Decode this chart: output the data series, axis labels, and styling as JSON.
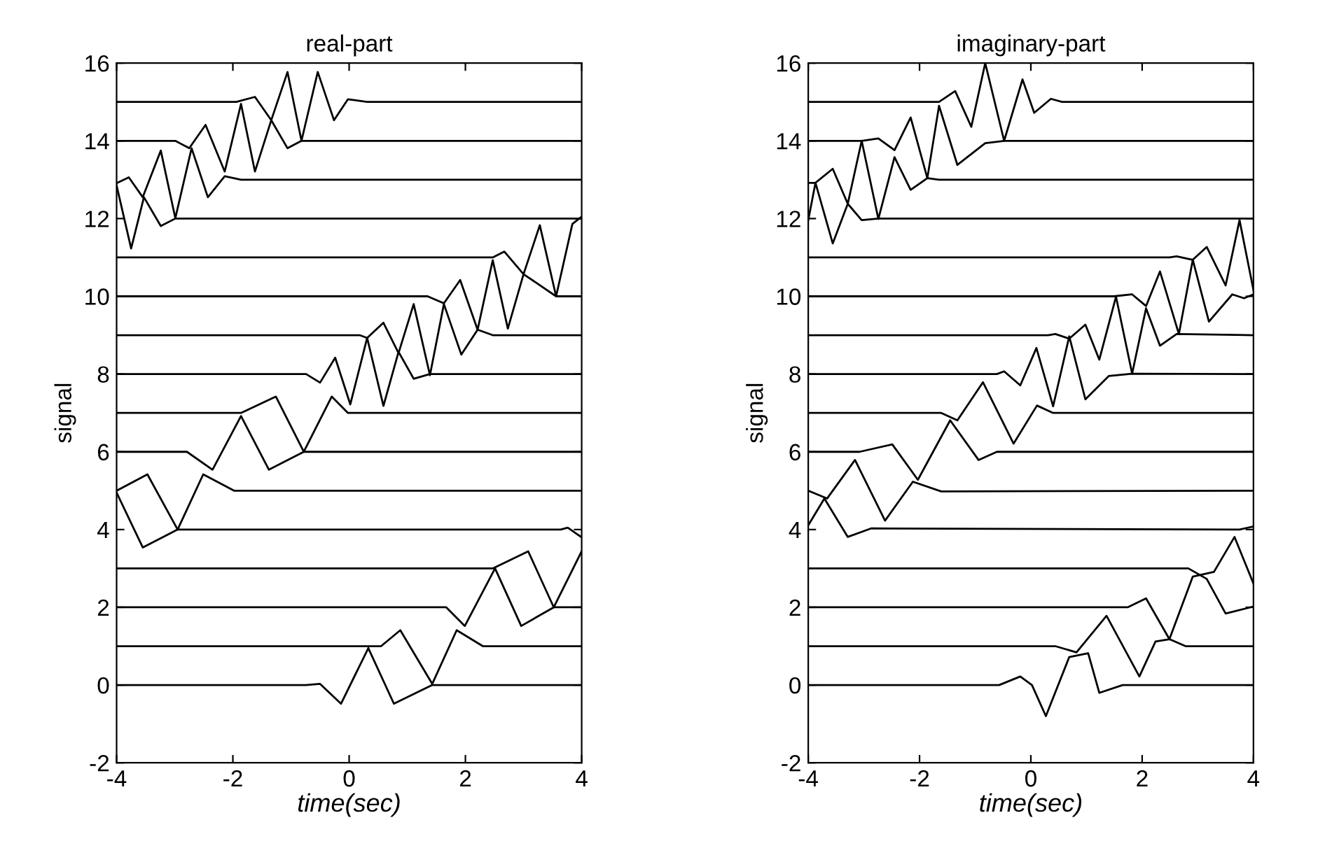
{
  "chart_data": [
    {
      "type": "line",
      "title": "real-part",
      "xlabel": "time(sec)",
      "ylabel": "signal",
      "xlim": [
        -4,
        4
      ],
      "ylim": [
        -2,
        16
      ],
      "xticks": [
        -4,
        -2,
        0,
        2,
        4
      ],
      "yticks": [
        -2,
        0,
        2,
        4,
        6,
        8,
        10,
        12,
        14,
        16
      ],
      "series": [
        {
          "color": "#000000",
          "x": [
            -4,
            -0.74,
            -0.5,
            -0.14,
            0.33,
            0.77,
            1.43,
            4
          ],
          "values": [
            0,
            0,
            0.03,
            -0.48,
            0.95,
            -0.48,
            0,
            0
          ]
        },
        {
          "color": "#000000",
          "x": [
            -4,
            0.31,
            0.55,
            0.88,
            1.43,
            1.85,
            2.3,
            4
          ],
          "values": [
            1,
            1,
            1,
            1.41,
            0.03,
            1.41,
            1,
            1
          ]
        },
        {
          "color": "#000000",
          "x": [
            -4,
            1.67,
            1.99,
            2.51,
            2.96,
            3.52,
            4
          ],
          "values": [
            2,
            2,
            1.52,
            3,
            1.52,
            2,
            2
          ]
        },
        {
          "color": "#000000",
          "x": [
            -4,
            2.47,
            3.08,
            3.52,
            4
          ],
          "values": [
            3,
            3,
            3.44,
            2,
            3.44
          ]
        },
        {
          "color": "#000000",
          "x": [
            -4,
            -3.55,
            -2.95,
            3.64,
            3.76,
            4
          ],
          "values": [
            4.95,
            3.54,
            4,
            4,
            4.05,
            3.8
          ]
        },
        {
          "color": "#000000",
          "x": [
            -4,
            -3.47,
            -2.95,
            -2.51,
            -1.98,
            4
          ],
          "values": [
            5,
            5.42,
            4,
            5.42,
            5,
            5
          ]
        },
        {
          "color": "#000000",
          "x": [
            -4,
            -2.79,
            -2.35,
            -1.86,
            -1.38,
            -0.78,
            4
          ],
          "values": [
            6,
            6,
            5.54,
            6.92,
            5.54,
            6,
            6
          ]
        },
        {
          "color": "#000000",
          "x": [
            -4,
            -1.86,
            -1.26,
            -0.78,
            -0.3,
            -0.02,
            4
          ],
          "values": [
            7,
            7,
            7.42,
            6,
            7.42,
            7,
            7
          ]
        },
        {
          "color": "#000000",
          "x": [
            -4,
            -0.74,
            -0.5,
            -0.24,
            0.02,
            0.31,
            0.59,
            0.85,
            1.11,
            1.39,
            4
          ],
          "values": [
            8,
            8,
            7.78,
            8.42,
            7.22,
            8.93,
            7.18,
            8.57,
            7.88,
            8,
            8
          ]
        },
        {
          "color": "#000000",
          "x": [
            -4,
            0.18,
            0.31,
            0.59,
            0.85,
            1.11,
            1.39,
            1.63,
            1.93,
            2.21,
            2.47,
            4
          ],
          "values": [
            9,
            9,
            8.93,
            9.32,
            8.54,
            9.8,
            7.97,
            9.8,
            8.5,
            9.14,
            9,
            9
          ]
        },
        {
          "color": "#000000",
          "x": [
            -4,
            1.35,
            1.63,
            1.91,
            2.21,
            2.47,
            2.73,
            3,
            3.56,
            4
          ],
          "values": [
            10,
            10,
            9.82,
            10.42,
            9.14,
            10.93,
            9.17,
            10.57,
            10,
            10
          ]
        },
        {
          "color": "#000000",
          "x": [
            -4,
            2.47,
            2.67,
            3,
            3.28,
            3.56,
            3.84,
            4
          ],
          "values": [
            11,
            11,
            11.15,
            10.57,
            11.83,
            10,
            11.86,
            12.05
          ]
        },
        {
          "color": "#000000",
          "x": [
            -4,
            -3.75,
            -3.53,
            -3.24,
            -2.99,
            4
          ],
          "values": [
            12.85,
            11.23,
            12.55,
            11.81,
            12,
            12
          ]
        },
        {
          "color": "#000000",
          "x": [
            -4,
            -3.79,
            -3.55,
            -3.24,
            -2.99,
            -2.71,
            -2.43,
            -2.14,
            -1.86,
            4
          ],
          "values": [
            12.91,
            13.06,
            12.55,
            13.75,
            12.01,
            13.81,
            12.55,
            13.09,
            13,
            13
          ]
        },
        {
          "color": "#000000",
          "x": [
            -4,
            -2.99,
            -2.75,
            -2.47,
            -2.14,
            -1.86,
            -1.62,
            -1.34,
            -1.06,
            -0.82,
            4
          ],
          "values": [
            14,
            14,
            13.81,
            14.41,
            13.21,
            14.95,
            13.21,
            14.53,
            13.81,
            14,
            14
          ]
        },
        {
          "color": "#000000",
          "x": [
            -4,
            -1.94,
            -1.62,
            -1.34,
            -1.06,
            -0.82,
            -0.54,
            -0.26,
            -0.02,
            0.31,
            4
          ],
          "values": [
            15,
            15,
            15.13,
            14.53,
            15.77,
            14,
            15.77,
            14.53,
            15.07,
            15,
            15
          ]
        }
      ]
    },
    {
      "type": "line",
      "title": "imaginary-part",
      "xlabel": "time(sec)",
      "ylabel": "signal",
      "xlim": [
        -4,
        4
      ],
      "ylim": [
        -2,
        16
      ],
      "xticks": [
        -4,
        -2,
        0,
        2,
        4
      ],
      "yticks": [
        -2,
        0,
        2,
        4,
        6,
        8,
        10,
        12,
        14,
        16
      ],
      "series": [
        {
          "color": "#000000",
          "x": [
            -4,
            -0.57,
            -0.19,
            0.02,
            0.27,
            0.69,
            1.03,
            1.23,
            1.65,
            4
          ],
          "values": [
            0,
            0,
            0.22,
            0,
            -0.8,
            0.72,
            0.82,
            -0.2,
            0,
            0
          ]
        },
        {
          "color": "#000000",
          "x": [
            -4,
            0.44,
            0.82,
            1.36,
            1.95,
            2.24,
            2.49,
            2.78,
            4
          ],
          "values": [
            1,
            1,
            0.84,
            1.78,
            0.22,
            1.12,
            1.18,
            1,
            1
          ]
        },
        {
          "color": "#000000",
          "x": [
            -4,
            1.74,
            2.07,
            2.49,
            2.91,
            3.29,
            3.66,
            4
          ],
          "values": [
            2,
            2,
            2.23,
            1.18,
            2.79,
            2.91,
            3.81,
            2.61
          ]
        },
        {
          "color": "#000000",
          "x": [
            -4,
            2.83,
            3.16,
            3.5,
            4
          ],
          "values": [
            3,
            3,
            2.73,
            1.84,
            2.02
          ]
        },
        {
          "color": "#000000",
          "x": [
            -4,
            -3.71,
            -3.29,
            -2.87,
            3.75,
            4
          ],
          "values": [
            4.11,
            4.8,
            3.81,
            4.03,
            4,
            4.08
          ]
        },
        {
          "color": "#000000",
          "x": [
            -4,
            -3.66,
            -3.16,
            -2.62,
            -2.12,
            -1.61,
            4
          ],
          "values": [
            5,
            4.8,
            5.79,
            4.23,
            5.23,
            4.98,
            5
          ]
        },
        {
          "color": "#000000",
          "x": [
            -4,
            -3.08,
            -2.49,
            -2.03,
            -1.45,
            -0.94,
            -0.61,
            4
          ],
          "values": [
            6,
            6,
            6.19,
            5.28,
            6.81,
            5.79,
            6,
            6
          ]
        },
        {
          "color": "#000000",
          "x": [
            -4,
            -1.61,
            -1.32,
            -0.86,
            -0.31,
            0.11,
            0.4,
            4
          ],
          "values": [
            7,
            7,
            6.81,
            7.79,
            6.21,
            7.19,
            7,
            7
          ]
        },
        {
          "color": "#000000",
          "x": [
            -4,
            -0.61,
            -0.48,
            -0.19,
            0.1,
            0.4,
            0.69,
            0.98,
            1.4,
            1.82,
            4
          ],
          "values": [
            8,
            8,
            8.07,
            7.71,
            8.67,
            7.17,
            8.97,
            7.35,
            7.95,
            8.01,
            8
          ]
        },
        {
          "color": "#000000",
          "x": [
            -4,
            0.31,
            0.44,
            0.69,
            0.98,
            1.23,
            1.53,
            1.82,
            2.07,
            2.32,
            2.62,
            4
          ],
          "values": [
            9,
            9,
            9.03,
            8.91,
            9.27,
            8.37,
            9.99,
            8.01,
            9.69,
            8.73,
            9.03,
            9
          ]
        },
        {
          "color": "#000000",
          "x": [
            -4,
            1.49,
            1.82,
            2.07,
            2.32,
            2.66,
            2.91,
            3.2,
            3.62,
            3.83,
            4
          ],
          "values": [
            10,
            10,
            10.05,
            9.75,
            10.64,
            9.03,
            10.94,
            9.35,
            10.05,
            9.95,
            10.05
          ]
        },
        {
          "color": "#000000",
          "x": [
            -4,
            2.49,
            2.62,
            2.91,
            3.16,
            3.5,
            3.75,
            4
          ],
          "values": [
            11,
            11,
            11.03,
            10.94,
            11.27,
            10.28,
            11.96,
            10.16
          ]
        },
        {
          "color": "#000000",
          "x": [
            -4,
            -3.87,
            -3.56,
            -3.29,
            -3.04,
            -2.74,
            4
          ],
          "values": [
            11.96,
            12.92,
            11.36,
            12.38,
            11.96,
            12,
            12
          ]
        },
        {
          "color": "#000000",
          "x": [
            -4,
            -3.87,
            -3.56,
            -3.29,
            -3.04,
            -2.74,
            -2.45,
            -2.16,
            -1.86,
            -1.65,
            4
          ],
          "values": [
            12.92,
            12.92,
            13.28,
            12.38,
            14,
            11.99,
            13.58,
            12.74,
            13.04,
            13,
            13
          ]
        },
        {
          "color": "#000000",
          "x": [
            -4,
            -3.04,
            -2.74,
            -2.45,
            -2.16,
            -1.86,
            -1.65,
            -1.32,
            -0.82,
            -0.48,
            4
          ],
          "values": [
            14,
            14,
            14.06,
            13.76,
            14.6,
            13.04,
            14.9,
            13.38,
            13.94,
            14,
            14
          ]
        },
        {
          "color": "#000000",
          "x": [
            -4,
            -1.65,
            -1.36,
            -1.07,
            -0.82,
            -0.48,
            -0.15,
            0.06,
            0.36,
            0.56,
            4
          ],
          "values": [
            15,
            15,
            15.28,
            14.36,
            16,
            14,
            15.58,
            14.72,
            15.08,
            15,
            15
          ]
        }
      ]
    }
  ]
}
